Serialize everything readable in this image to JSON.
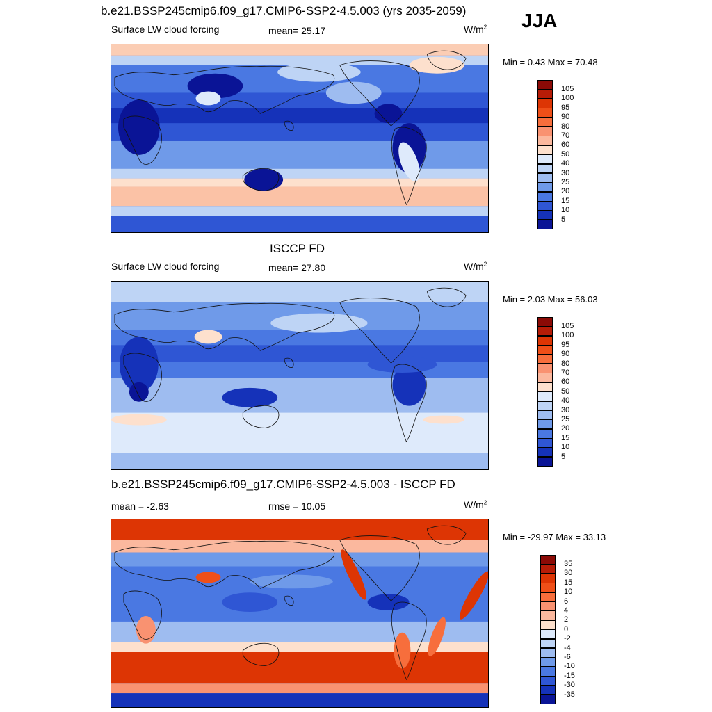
{
  "season": "JJA",
  "panels": [
    {
      "title": "b.e21.BSSP245cmip6.f09_g17.CMIP6-SSP2-4.5.003 (yrs 2035-2059)",
      "left_label": "Surface LW cloud forcing",
      "center_label": "mean=  25.17",
      "units": "W/m",
      "units_sup": "2",
      "minmax": "Min =   0.43 Max =  70.48",
      "colorbar": {
        "labels": [
          "105",
          "100",
          "95",
          "90",
          "80",
          "70",
          "60",
          "50",
          "40",
          "30",
          "25",
          "20",
          "15",
          "10",
          "5"
        ],
        "colors": [
          "#8b0a06",
          "#b61c07",
          "#dd3504",
          "#ef4f18",
          "#f76e3c",
          "#f99271",
          "#fbb89e",
          "#fde0cd",
          "#deeafb",
          "#bed4f5",
          "#9ebcf0",
          "#6f9ae9",
          "#4a78e2",
          "#2f56d4",
          "#1532b9",
          "#0a1496"
        ]
      }
    },
    {
      "title": "ISCCP FD",
      "left_label": "Surface LW cloud forcing",
      "center_label": "mean=  27.80",
      "units": "W/m",
      "units_sup": "2",
      "minmax": "Min =   2.03 Max =  56.03",
      "colorbar": {
        "labels": [
          "105",
          "100",
          "95",
          "90",
          "80",
          "70",
          "60",
          "50",
          "40",
          "30",
          "25",
          "20",
          "15",
          "10",
          "5"
        ],
        "colors": [
          "#8b0a06",
          "#b61c07",
          "#dd3504",
          "#ef4f18",
          "#f76e3c",
          "#f99271",
          "#fbb89e",
          "#fde0cd",
          "#deeafb",
          "#bed4f5",
          "#9ebcf0",
          "#6f9ae9",
          "#4a78e2",
          "#2f56d4",
          "#1532b9",
          "#0a1496"
        ]
      }
    },
    {
      "title": "b.e21.BSSP245cmip6.f09_g17.CMIP6-SSP2-4.5.003 - ISCCP FD",
      "left_label": "mean =  -2.63",
      "center_label": "rmse =  10.05",
      "units": "W/m",
      "units_sup": "2",
      "minmax": "Min = -29.97 Max =  33.13",
      "colorbar": {
        "labels": [
          "35",
          "30",
          "15",
          "10",
          "6",
          "4",
          "2",
          "0",
          "-2",
          "-4",
          "-6",
          "-10",
          "-15",
          "-30",
          "-35"
        ],
        "colors": [
          "#8b0a06",
          "#b61c07",
          "#dd3504",
          "#ef4f18",
          "#f76e3c",
          "#f99271",
          "#fbb89e",
          "#fde0cd",
          "#deeafb",
          "#bed4f5",
          "#9ebcf0",
          "#6f9ae9",
          "#4a78e2",
          "#2f56d4",
          "#1532b9",
          "#0a1496"
        ]
      }
    }
  ]
}
